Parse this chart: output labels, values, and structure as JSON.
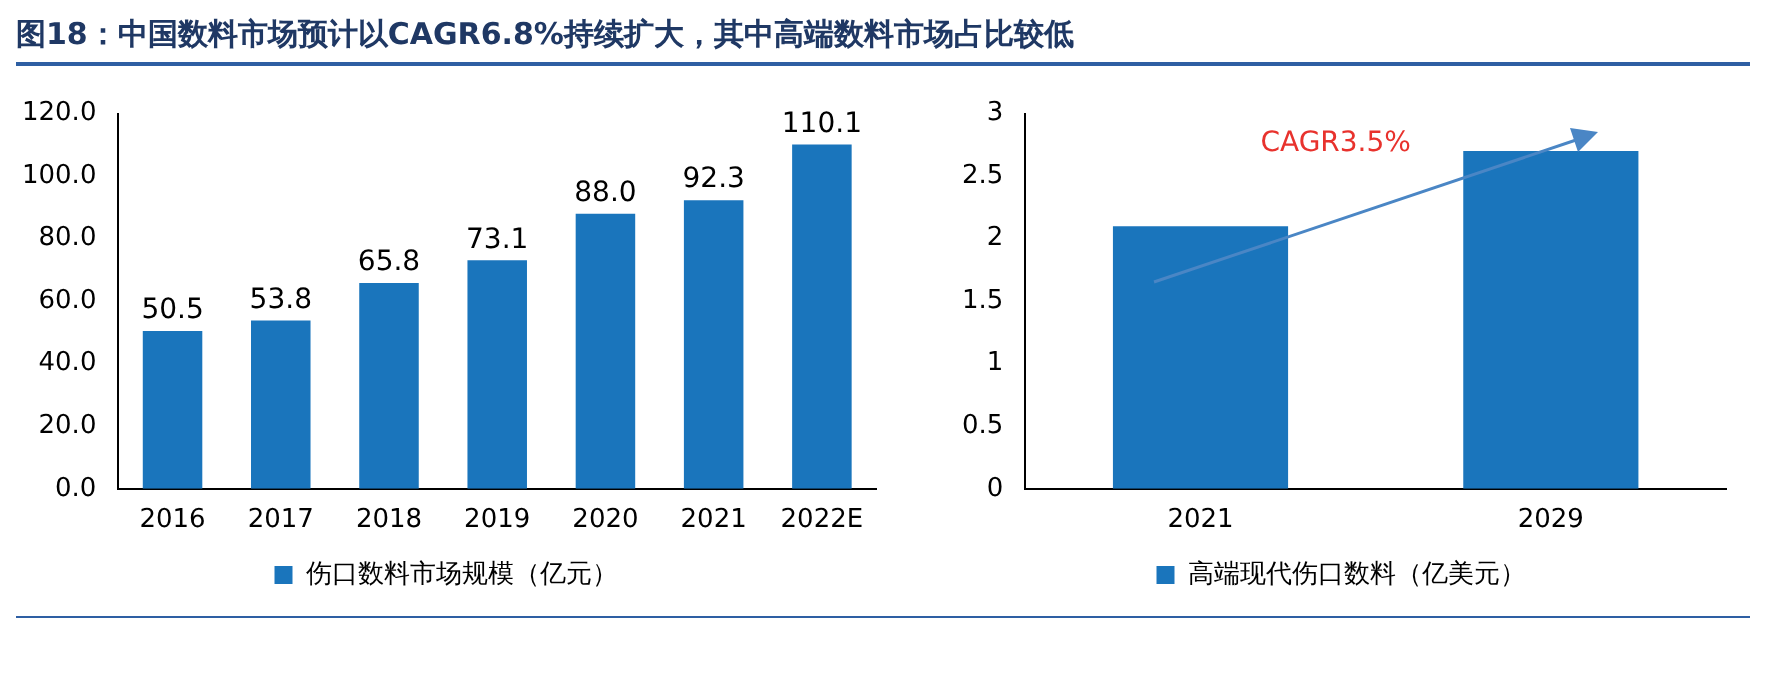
{
  "chart_data": [
    {
      "type": "bar",
      "title": "图18：中国数料市场预计以CAGR6.8%持续扩大，其中高端数料市场占比较低",
      "categories": [
        "2016",
        "2017",
        "2018",
        "2019",
        "2020",
        "2021",
        "2022E"
      ],
      "series": [
        {
          "name": "伤口数料市场规模（亿元）",
          "color": "#1a75bc",
          "values": [
            50.5,
            53.8,
            65.8,
            73.1,
            88.0,
            92.3,
            110.1
          ],
          "value_labels": [
            "50.5",
            "53.8",
            "65.8",
            "73.1",
            "88.0",
            "92.3",
            "110.1"
          ]
        }
      ],
      "ylim": [
        0,
        120
      ],
      "yticks": [
        {
          "value": 0,
          "label": "0.0"
        },
        {
          "value": 20,
          "label": "20.0"
        },
        {
          "value": 40,
          "label": "40.0"
        },
        {
          "value": 60,
          "label": "60.0"
        },
        {
          "value": 80,
          "label": "80.0"
        },
        {
          "value": 100,
          "label": "100.0"
        },
        {
          "value": 120,
          "label": "120.0"
        }
      ],
      "grid": false,
      "legend": "bottom"
    },
    {
      "type": "bar",
      "categories": [
        "2021",
        "2029"
      ],
      "series": [
        {
          "name": "高端现代伤口数料（亿美元）",
          "color": "#1a75bc",
          "values": [
            2.1,
            2.7
          ]
        }
      ],
      "ylim": [
        0,
        3
      ],
      "yticks": [
        0,
        0.5,
        1,
        1.5,
        2,
        2.5,
        3
      ],
      "grid": false,
      "legend": "bottom",
      "annotations": [
        "CAGR3.5%"
      ]
    }
  ]
}
